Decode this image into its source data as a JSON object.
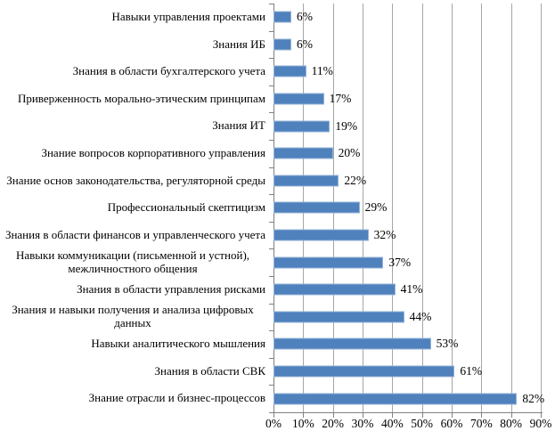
{
  "chart_data": {
    "type": "bar",
    "orientation": "horizontal",
    "title": "",
    "xlabel": "",
    "ylabel": "",
    "categories": [
      "Навыки управления проектами",
      "Знания ИБ",
      "Знания в области бухгалтерского учета",
      "Приверженность морально-этическим принципам",
      "Знания ИТ",
      "Знание вопросов корпоративного управления",
      "Знание основ законодательства, регуляторной среды",
      "Профессиональный скептицизм",
      "Знания в области финансов и управленческого учета",
      "Навыки коммуникации (письменной и устной), межличностного общения",
      "Знания в области управления рисками",
      "Знания и навыки получения и анализа цифровых данных",
      "Навыки аналитического мышления",
      "Знания в области СВК",
      "Знание отрасли и бизнес-процессов"
    ],
    "values": [
      6,
      6,
      11,
      17,
      19,
      20,
      22,
      29,
      32,
      37,
      41,
      44,
      53,
      61,
      82
    ],
    "data_labels": [
      "6%",
      "6%",
      "11%",
      "17%",
      "19%",
      "20%",
      "22%",
      "29%",
      "32%",
      "37%",
      "41%",
      "44%",
      "53%",
      "61%",
      "82%"
    ],
    "xlim": [
      0,
      90
    ],
    "x_ticks": [
      "0%",
      "10%",
      "20%",
      "30%",
      "40%",
      "50%",
      "60%",
      "70%",
      "80%",
      "90%"
    ],
    "grid": "vertical gridlines every 10%, no top/right frame",
    "legend": "none",
    "bar_color": "#4f81bd",
    "bar_border_color": "#95b3d7",
    "gridline_color": "#a6a6a6",
    "axis_color": "#808080",
    "text_color": "#000000",
    "background_color": "#ffffff"
  }
}
